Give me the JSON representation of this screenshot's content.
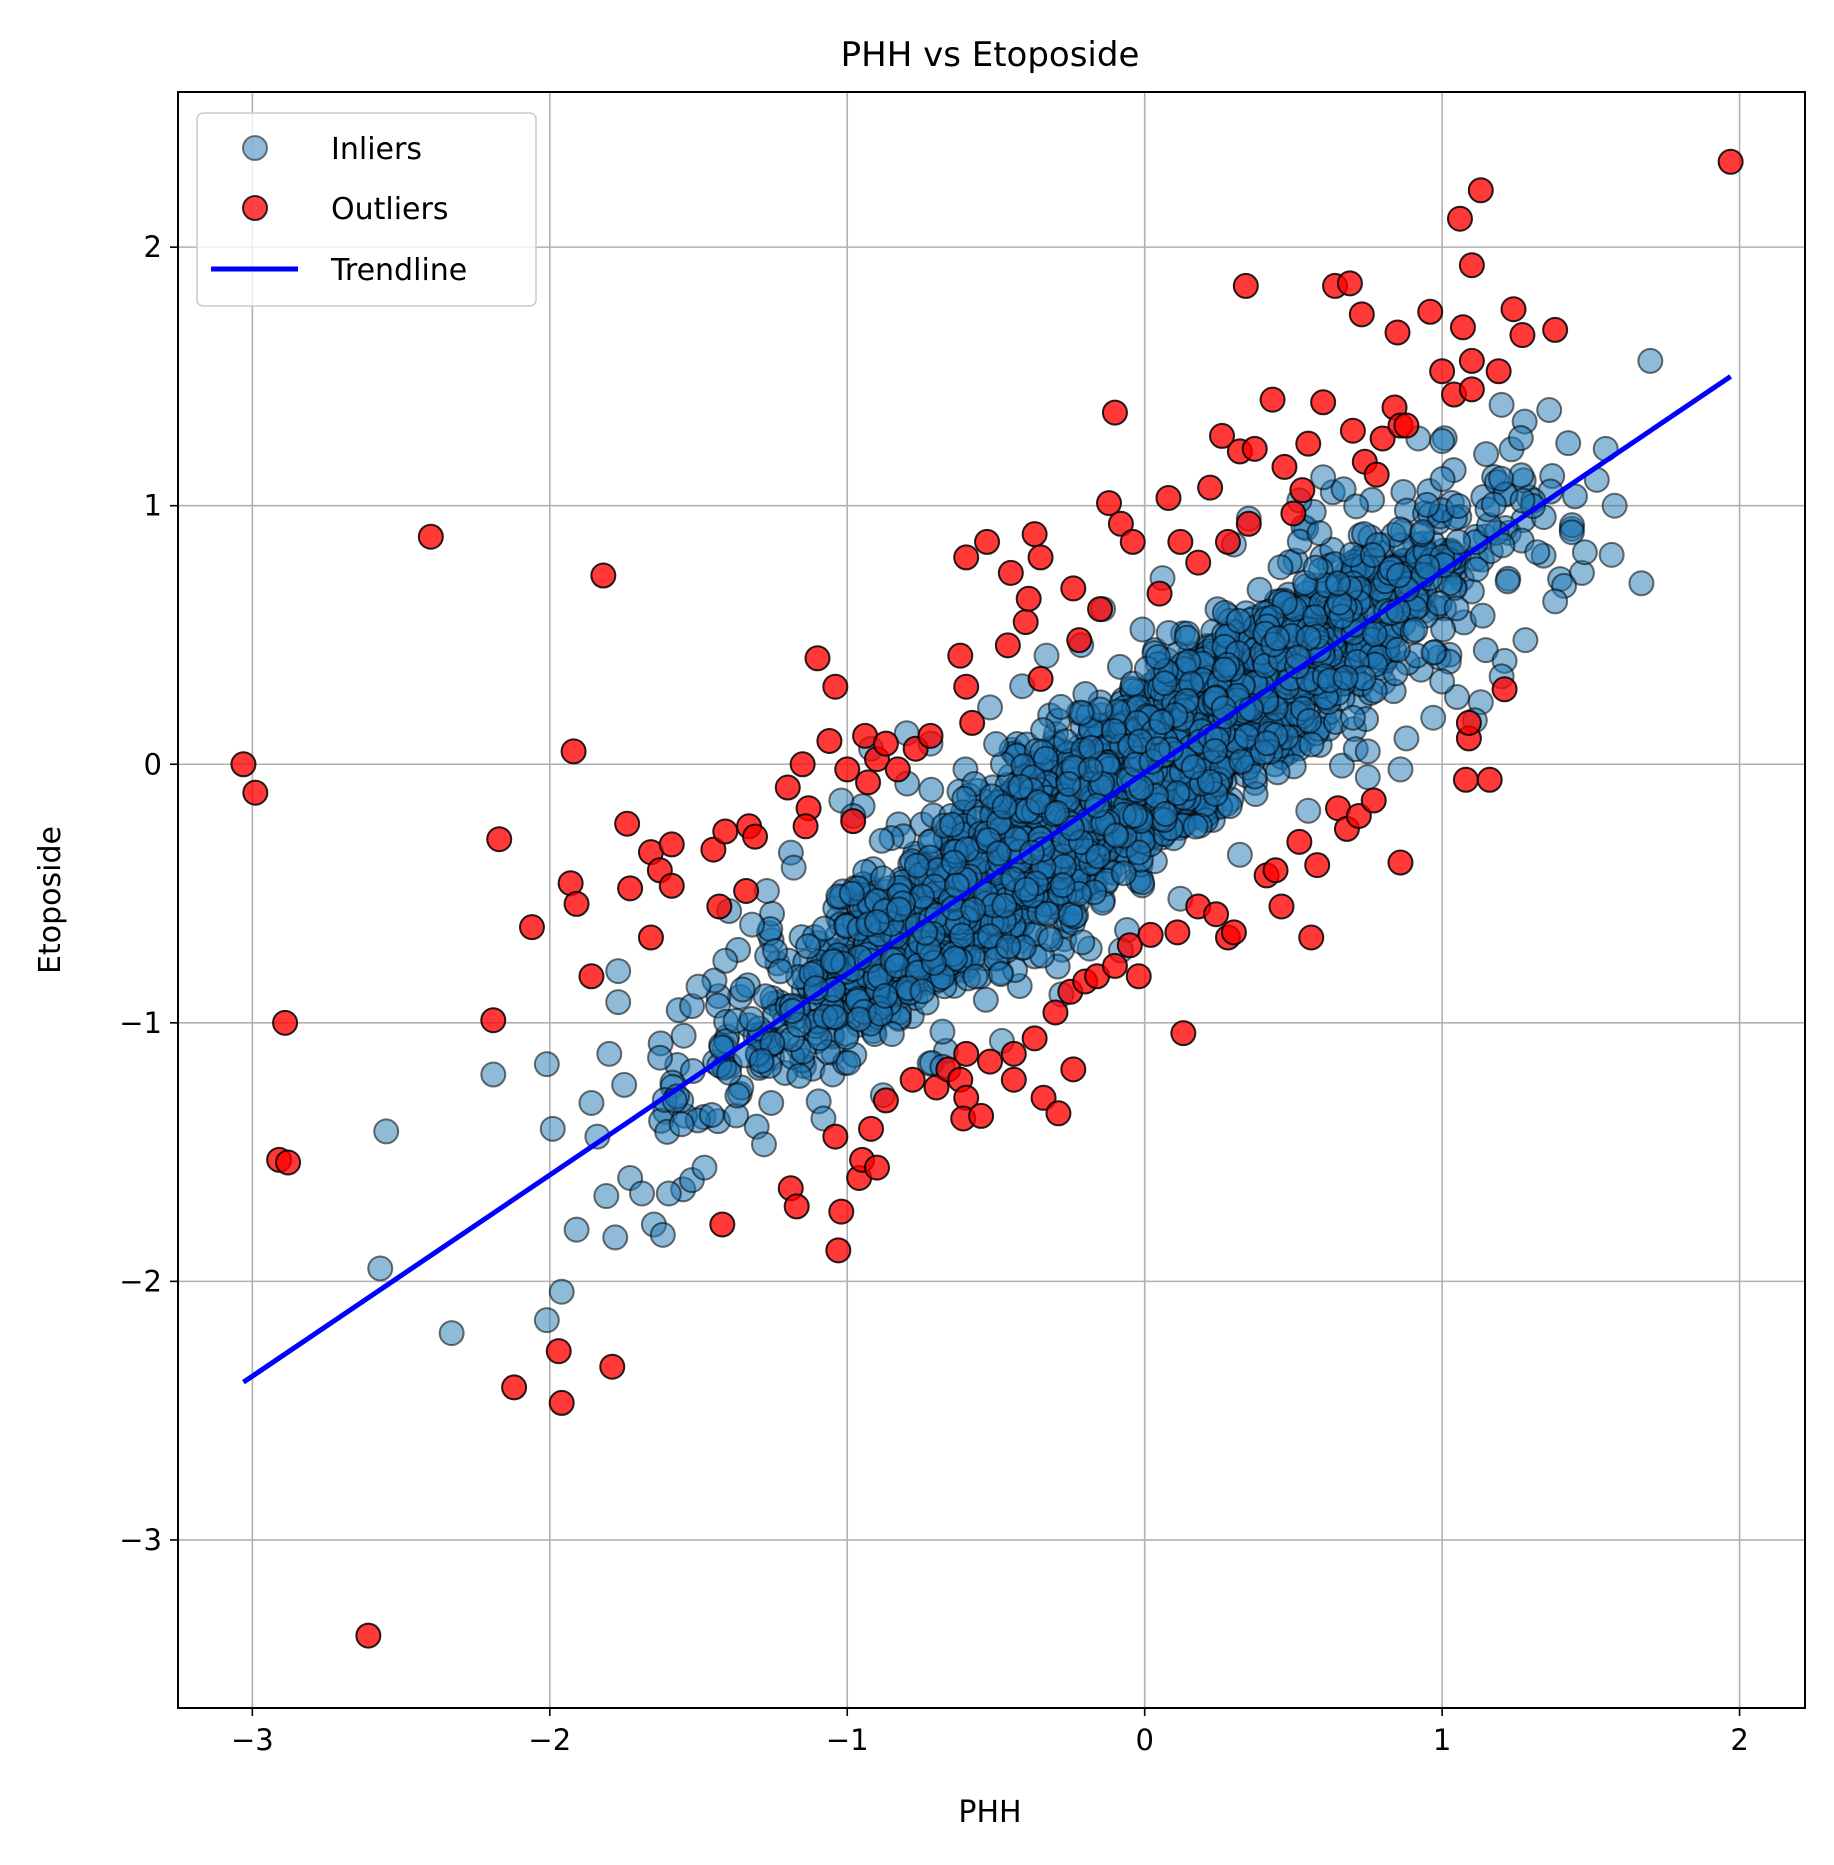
{
  "chart_data": {
    "type": "scatter",
    "title": "PHH vs Etoposide",
    "xlabel": "PHH",
    "ylabel": "Etoposide",
    "xlim": [
      -3.25,
      2.22
    ],
    "ylim": [
      -3.65,
      2.6
    ],
    "xticks": [
      -3,
      -2,
      -1,
      0,
      1,
      2
    ],
    "yticks": [
      -3,
      -2,
      -1,
      0,
      1,
      2
    ],
    "xtick_labels": [
      "−3",
      "−2",
      "−1",
      "0",
      "1",
      "2"
    ],
    "ytick_labels": [
      "−3",
      "−2",
      "−1",
      "0",
      "1",
      "2"
    ],
    "grid": true,
    "legend": {
      "placement": "top-left",
      "entries": [
        "Inliers",
        "Outliers",
        "Trendline"
      ]
    },
    "colors": {
      "inliers": "#1f77b4",
      "outliers": "#ff0000",
      "trendline": "#0000ff",
      "marker_edge": "#000000"
    },
    "series": [
      {
        "name": "Inliers",
        "kind": "scatter",
        "points": [
          [
            -2.55,
            -1.42
          ],
          [
            -2.57,
            -1.95
          ],
          [
            -2.33,
            -2.2
          ],
          [
            -2.19,
            -1.2
          ],
          [
            -2.01,
            -1.16
          ],
          [
            -1.99,
            -1.41
          ],
          [
            -1.96,
            -2.04
          ],
          [
            -2.01,
            -2.15
          ],
          [
            -1.91,
            -1.8
          ],
          [
            -1.86,
            -1.31
          ],
          [
            -1.84,
            -1.44
          ],
          [
            -1.81,
            -1.67
          ],
          [
            -1.78,
            -1.83
          ],
          [
            -1.77,
            -0.92
          ],
          [
            -1.77,
            -0.8
          ],
          [
            -1.73,
            -1.6
          ],
          [
            -1.69,
            -1.66
          ],
          [
            -1.65,
            -1.78
          ],
          [
            -1.62,
            -1.82
          ],
          [
            -1.6,
            -1.66
          ],
          [
            -1.8,
            -1.12
          ],
          [
            -1.75,
            -1.24
          ],
          [
            -1.41,
            -0.76
          ],
          [
            -1.32,
            -0.62
          ],
          [
            -1.27,
            -0.49
          ],
          [
            -1.02,
            -0.14
          ],
          [
            -0.92,
            0.06
          ],
          [
            -0.8,
            0.12
          ],
          [
            1.7,
            1.56
          ],
          [
            1.67,
            0.7
          ],
          [
            1.57,
            0.81
          ],
          [
            1.58,
            1.0
          ],
          [
            1.47,
            0.74
          ],
          [
            1.48,
            0.82
          ],
          [
            1.36,
            1.37
          ],
          [
            1.2,
            1.39
          ],
          [
            1.41,
            0.69
          ],
          [
            1.38,
            0.63
          ],
          [
            1.28,
            0.48
          ],
          [
            1.21,
            0.4
          ],
          [
            1.2,
            0.34
          ],
          [
            1.13,
            0.24
          ],
          [
            1.11,
            0.17
          ],
          [
            1.05,
            0.26
          ],
          [
            0.97,
            0.18
          ],
          [
            0.88,
            0.1
          ],
          [
            0.75,
            0.05
          ],
          [
            1.55,
            1.22
          ],
          [
            1.52,
            1.1
          ],
          [
            0.92,
            1.26
          ],
          [
            1.0,
            1.25
          ],
          [
            0.6,
            1.11
          ],
          [
            0.35,
            0.95
          ],
          [
            0.06,
            0.72
          ],
          [
            -0.14,
            0.6
          ],
          [
            -0.33,
            0.42
          ],
          [
            0.75,
            -0.05
          ],
          [
            0.55,
            -0.18
          ],
          [
            0.32,
            -0.35
          ],
          [
            0.12,
            -0.52
          ],
          [
            -0.08,
            -0.72
          ],
          [
            -0.28,
            -0.89
          ],
          [
            -0.48,
            -1.07
          ],
          [
            -0.68,
            -1.17
          ],
          [
            -0.88,
            -1.28
          ],
          [
            -1.08,
            -1.37
          ],
          [
            -1.28,
            -1.47
          ],
          [
            -1.48,
            -1.56
          ],
          [
            -1.58,
            -1.3
          ],
          [
            -1.55,
            -1.05
          ],
          [
            -1.5,
            -0.86
          ],
          [
            -1.18,
            -0.4
          ],
          [
            -0.98,
            -0.2
          ],
          [
            -0.72,
            0.08
          ],
          [
            -0.52,
            0.22
          ],
          [
            0.3,
            0.85
          ],
          [
            0.52,
            1.02
          ],
          [
            1.27,
            1.02
          ],
          [
            1.32,
            0.82
          ],
          [
            0.86,
            -0.02
          ],
          [
            1.0,
            0.32
          ],
          [
            0.7,
            0.18
          ]
        ]
      },
      {
        "name": "Outliers",
        "kind": "scatter",
        "points": [
          [
            -3.03,
            0.0
          ],
          [
            -2.99,
            -0.11
          ],
          [
            -2.4,
            0.88
          ],
          [
            -1.82,
            0.73
          ],
          [
            -2.89,
            -1.0
          ],
          [
            -2.91,
            -1.53
          ],
          [
            -2.88,
            -1.54
          ],
          [
            -2.61,
            -3.37
          ],
          [
            -2.17,
            -0.29
          ],
          [
            -2.19,
            -0.99
          ],
          [
            -2.06,
            -0.63
          ],
          [
            -2.12,
            -2.41
          ],
          [
            -1.97,
            -2.27
          ],
          [
            -1.96,
            -2.47
          ],
          [
            -1.79,
            -2.33
          ],
          [
            -1.92,
            0.05
          ],
          [
            -1.93,
            -0.46
          ],
          [
            -1.91,
            -0.54
          ],
          [
            -1.86,
            -0.82
          ],
          [
            -1.74,
            -0.23
          ],
          [
            -1.73,
            -0.48
          ],
          [
            -1.66,
            -0.34
          ],
          [
            -1.63,
            -0.41
          ],
          [
            -1.59,
            -0.31
          ],
          [
            -1.59,
            -0.47
          ],
          [
            -1.66,
            -0.67
          ],
          [
            -1.43,
            -0.55
          ],
          [
            -1.45,
            -0.33
          ],
          [
            -1.41,
            -0.26
          ],
          [
            -1.33,
            -0.24
          ],
          [
            -1.31,
            -0.28
          ],
          [
            -1.34,
            -0.49
          ],
          [
            -1.2,
            -0.09
          ],
          [
            -1.13,
            -0.17
          ],
          [
            -1.15,
            0.0
          ],
          [
            -1.14,
            -0.24
          ],
          [
            -1.06,
            0.09
          ],
          [
            -1.1,
            0.41
          ],
          [
            -1.04,
            0.3
          ],
          [
            -1.0,
            -0.02
          ],
          [
            -0.98,
            -0.22
          ],
          [
            -0.9,
            0.02
          ],
          [
            -0.94,
            0.11
          ],
          [
            -0.87,
            0.08
          ],
          [
            -0.83,
            -0.02
          ],
          [
            -0.77,
            0.06
          ],
          [
            -0.72,
            0.11
          ],
          [
            -0.93,
            -0.07
          ],
          [
            -1.42,
            -1.78
          ],
          [
            -1.19,
            -1.64
          ],
          [
            -1.17,
            -1.71
          ],
          [
            -1.04,
            -1.44
          ],
          [
            -1.03,
            -1.88
          ],
          [
            -1.02,
            -1.73
          ],
          [
            -0.96,
            -1.6
          ],
          [
            -0.95,
            -1.53
          ],
          [
            -0.92,
            -1.41
          ],
          [
            -0.9,
            -1.56
          ],
          [
            -0.87,
            -1.3
          ],
          [
            -0.78,
            -1.22
          ],
          [
            -0.7,
            -1.25
          ],
          [
            -0.66,
            -1.18
          ],
          [
            -0.62,
            -1.22
          ],
          [
            -0.6,
            -1.12
          ],
          [
            -0.6,
            -1.29
          ],
          [
            -0.61,
            -1.37
          ],
          [
            -0.55,
            -1.36
          ],
          [
            -0.52,
            -1.15
          ],
          [
            -0.44,
            -1.12
          ],
          [
            -0.44,
            -1.22
          ],
          [
            -0.37,
            -1.06
          ],
          [
            -0.34,
            -1.29
          ],
          [
            -0.29,
            -1.35
          ],
          [
            -0.24,
            -1.18
          ],
          [
            -0.3,
            -0.96
          ],
          [
            -0.25,
            -0.88
          ],
          [
            -0.2,
            -0.84
          ],
          [
            -0.16,
            -0.82
          ],
          [
            -0.1,
            -0.78
          ],
          [
            -0.05,
            -0.7
          ],
          [
            -0.02,
            -0.82
          ],
          [
            0.02,
            -0.66
          ],
          [
            0.11,
            -0.65
          ],
          [
            0.13,
            -1.04
          ],
          [
            0.18,
            -0.55
          ],
          [
            0.24,
            -0.58
          ],
          [
            0.28,
            -0.67
          ],
          [
            0.3,
            -0.65
          ],
          [
            0.41,
            -0.43
          ],
          [
            0.44,
            -0.41
          ],
          [
            0.46,
            -0.55
          ],
          [
            0.52,
            -0.3
          ],
          [
            0.56,
            -0.67
          ],
          [
            0.58,
            -0.39
          ],
          [
            0.65,
            -0.17
          ],
          [
            0.68,
            -0.25
          ],
          [
            0.72,
            -0.2
          ],
          [
            0.77,
            -0.14
          ],
          [
            0.86,
            -0.38
          ],
          [
            1.08,
            -0.06
          ],
          [
            1.16,
            -0.06
          ],
          [
            1.09,
            0.1
          ],
          [
            1.09,
            0.16
          ],
          [
            1.21,
            0.29
          ],
          [
            -0.62,
            0.42
          ],
          [
            -0.6,
            0.3
          ],
          [
            -0.58,
            0.16
          ],
          [
            -0.53,
            0.86
          ],
          [
            -0.6,
            0.8
          ],
          [
            -0.45,
            0.74
          ],
          [
            -0.46,
            0.46
          ],
          [
            -0.4,
            0.55
          ],
          [
            -0.37,
            0.89
          ],
          [
            -0.35,
            0.8
          ],
          [
            -0.39,
            0.64
          ],
          [
            -0.35,
            0.33
          ],
          [
            -0.24,
            0.68
          ],
          [
            -0.22,
            0.48
          ],
          [
            -0.15,
            0.6
          ],
          [
            -0.12,
            1.01
          ],
          [
            -0.08,
            0.93
          ],
          [
            -0.04,
            0.86
          ],
          [
            -0.1,
            1.36
          ],
          [
            0.05,
            0.66
          ],
          [
            0.08,
            1.03
          ],
          [
            0.12,
            0.86
          ],
          [
            0.18,
            0.78
          ],
          [
            0.22,
            1.07
          ],
          [
            0.26,
            1.27
          ],
          [
            0.28,
            0.86
          ],
          [
            0.32,
            1.21
          ],
          [
            0.35,
            0.93
          ],
          [
            0.37,
            1.22
          ],
          [
            0.34,
            1.85
          ],
          [
            0.43,
            1.41
          ],
          [
            0.47,
            1.15
          ],
          [
            0.5,
            0.97
          ],
          [
            0.53,
            1.06
          ],
          [
            0.55,
            1.24
          ],
          [
            0.6,
            1.4
          ],
          [
            0.64,
            1.85
          ],
          [
            0.69,
            1.86
          ],
          [
            0.73,
            1.74
          ],
          [
            0.7,
            1.29
          ],
          [
            0.74,
            1.17
          ],
          [
            0.8,
            1.26
          ],
          [
            0.78,
            1.12
          ],
          [
            0.84,
            1.38
          ],
          [
            0.85,
            1.67
          ],
          [
            0.86,
            1.31
          ],
          [
            0.88,
            1.31
          ],
          [
            0.96,
            1.75
          ],
          [
            1.04,
            1.43
          ],
          [
            1.0,
            1.52
          ],
          [
            1.06,
            2.11
          ],
          [
            1.1,
            1.93
          ],
          [
            1.13,
            2.22
          ],
          [
            1.07,
            1.69
          ],
          [
            1.1,
            1.56
          ],
          [
            1.1,
            1.45
          ],
          [
            1.19,
            1.52
          ],
          [
            1.24,
            1.76
          ],
          [
            1.27,
            1.66
          ],
          [
            1.38,
            1.68
          ],
          [
            1.97,
            2.33
          ]
        ]
      },
      {
        "name": "Trendline",
        "kind": "line",
        "points": [
          [
            -3.03,
            -2.39
          ],
          [
            1.97,
            1.5
          ]
        ]
      }
    ]
  }
}
